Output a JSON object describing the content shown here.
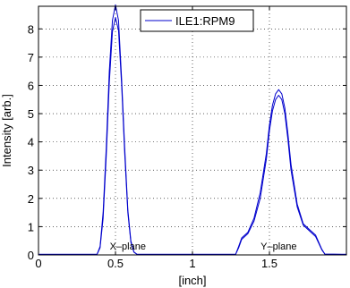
{
  "chart_data": {
    "type": "line",
    "title": "",
    "xlabel": "[inch]",
    "ylabel": "Intensity [arb.]",
    "xlim": [
      0,
      2
    ],
    "ylim": [
      0,
      8.8
    ],
    "xticks": [
      0,
      0.5,
      1,
      1.5
    ],
    "xtick_labels": [
      "0",
      "0.5",
      "1",
      "1.5"
    ],
    "yticks": [
      0,
      1,
      2,
      3,
      4,
      5,
      6,
      7,
      8
    ],
    "ytick_labels": [
      "0",
      "1",
      "2",
      "3",
      "4",
      "5",
      "6",
      "7",
      "8"
    ],
    "grid": true,
    "legend_position": "top-right",
    "annotations": [
      {
        "text": "X–plane",
        "x": 0.58,
        "y": 0.12
      },
      {
        "text": "Y–plane",
        "x": 1.56,
        "y": 0.12
      }
    ],
    "series": [
      {
        "name": "ILE1:RPM9",
        "color": "#0000cc",
        "x": [
          0,
          0.38,
          0.4,
          0.42,
          0.44,
          0.46,
          0.48,
          0.5,
          0.52,
          0.54,
          0.56,
          0.58,
          0.6,
          0.62,
          0.64,
          1.28,
          1.3,
          1.32,
          1.36,
          1.4,
          1.44,
          1.48,
          1.5,
          1.52,
          1.54,
          1.56,
          1.58,
          1.6,
          1.62,
          1.64,
          1.68,
          1.72,
          1.76,
          1.8,
          1.84,
          1.86,
          2.0
        ],
        "values": [
          0.02,
          0.02,
          0.3,
          1.5,
          3.8,
          6.5,
          8.3,
          8.85,
          8.3,
          6.2,
          3.8,
          1.6,
          0.5,
          0.1,
          0.02,
          0.02,
          0.3,
          0.6,
          0.8,
          1.3,
          2.2,
          3.6,
          4.6,
          5.3,
          5.7,
          5.85,
          5.7,
          5.2,
          4.3,
          3.2,
          1.8,
          1.1,
          0.9,
          0.7,
          0.2,
          0.03,
          0.02
        ]
      },
      {
        "name": "",
        "color": "#0000cc",
        "x": [
          0,
          0.38,
          0.4,
          0.42,
          0.44,
          0.46,
          0.48,
          0.5,
          0.52,
          0.54,
          0.56,
          0.58,
          0.6,
          0.62,
          0.64,
          1.28,
          1.3,
          1.32,
          1.36,
          1.4,
          1.44,
          1.48,
          1.5,
          1.52,
          1.54,
          1.56,
          1.58,
          1.6,
          1.62,
          1.64,
          1.68,
          1.72,
          1.76,
          1.8,
          1.84,
          1.86,
          2.0
        ],
        "values": [
          0.02,
          0.02,
          0.25,
          1.3,
          3.5,
          6.1,
          7.9,
          8.4,
          7.95,
          6.0,
          3.6,
          1.5,
          0.45,
          0.1,
          0.02,
          0.02,
          0.25,
          0.55,
          0.75,
          1.2,
          2.0,
          3.4,
          4.4,
          5.1,
          5.5,
          5.65,
          5.5,
          5.0,
          4.1,
          3.0,
          1.7,
          1.05,
          0.85,
          0.65,
          0.18,
          0.03,
          0.02
        ]
      }
    ]
  }
}
